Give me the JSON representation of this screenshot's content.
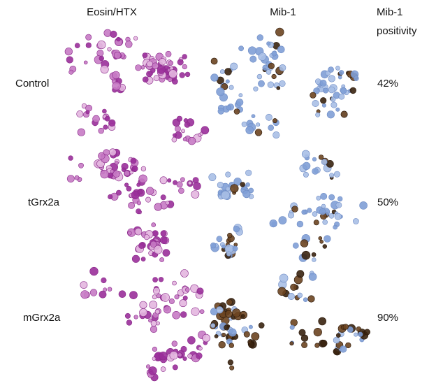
{
  "headers": {
    "eosin": "Eosin/HTX",
    "mib": "Mib-1",
    "positivity": [
      "Mib-1",
      "positivity"
    ]
  },
  "rows": [
    {
      "label": "Control",
      "positivity": "42%"
    },
    {
      "label": "tGrx2a",
      "positivity": "50%"
    },
    {
      "label": "mGrx2a",
      "positivity": "90%"
    }
  ]
}
